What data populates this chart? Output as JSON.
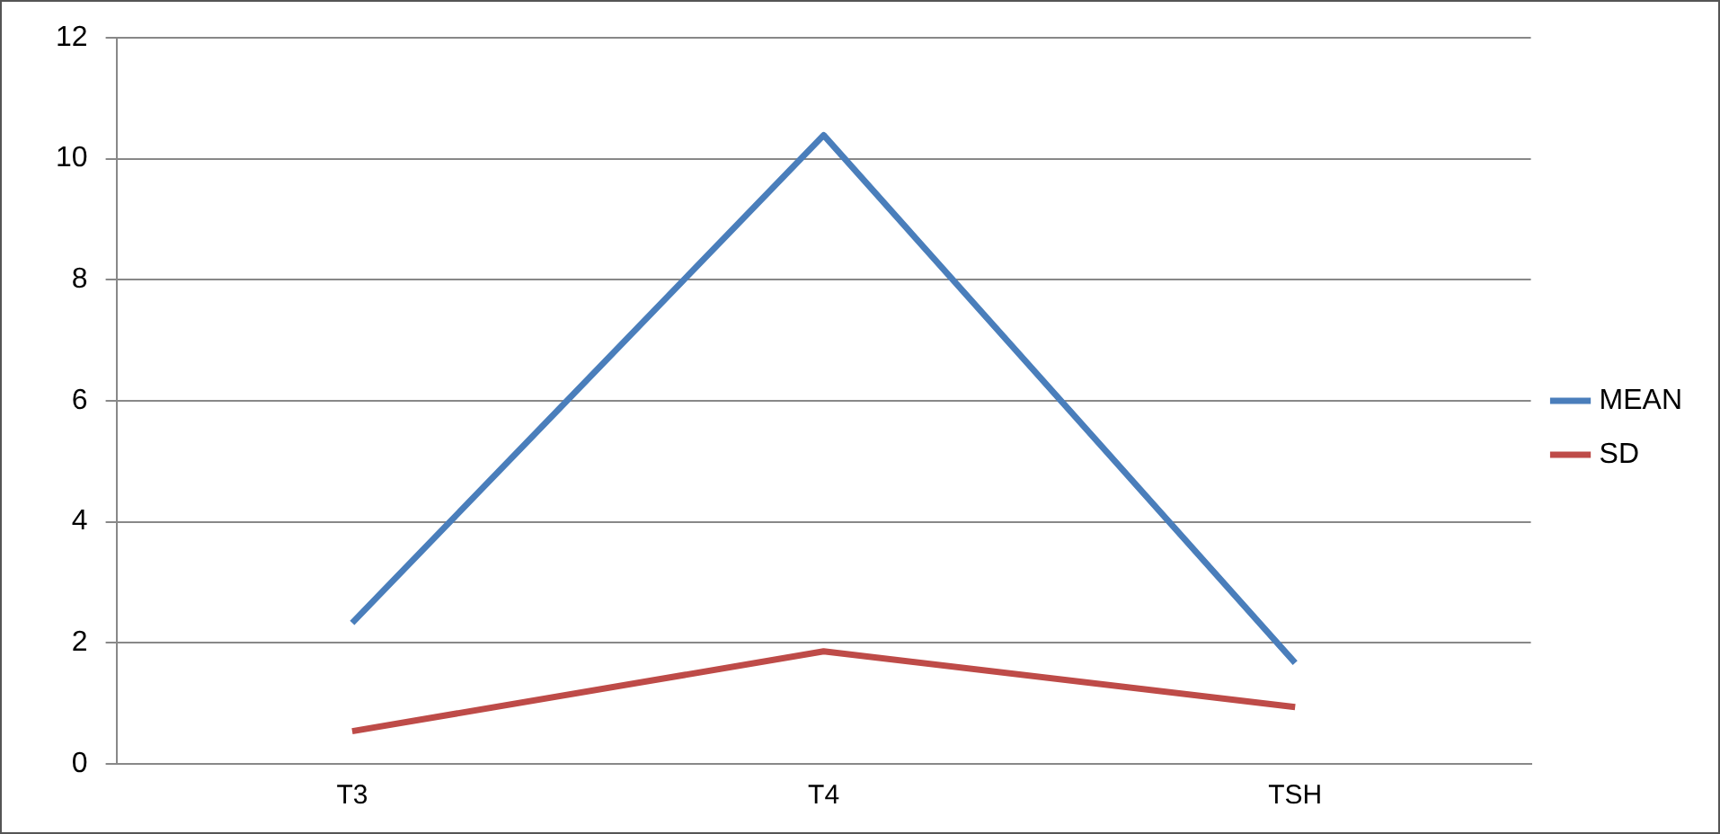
{
  "chart_data": {
    "type": "line",
    "categories": [
      "T3",
      "T4",
      "TSH"
    ],
    "series": [
      {
        "name": "MEAN",
        "color": "#4a7ebb",
        "values": [
          2.33,
          10.39,
          1.67
        ]
      },
      {
        "name": "SD",
        "color": "#be4b48",
        "values": [
          0.54,
          1.86,
          0.94
        ]
      }
    ],
    "ylim": [
      0,
      12
    ],
    "yticks": [
      0,
      2,
      4,
      6,
      8,
      10,
      12
    ],
    "grid": "y",
    "legend": "right",
    "marker": "none"
  }
}
